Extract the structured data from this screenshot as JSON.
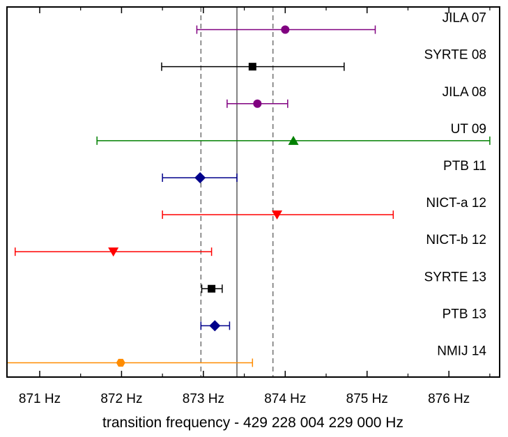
{
  "chart_data": {
    "type": "scatter",
    "xlabel": "transition frequency - 429 228 004 229 000 Hz",
    "xlim": [
      870.6,
      876.62
    ],
    "x_ticks": [
      {
        "value": 871,
        "label": "871 Hz"
      },
      {
        "value": 872,
        "label": "872 Hz"
      },
      {
        "value": 873,
        "label": "873 Hz"
      },
      {
        "value": 874,
        "label": "874 Hz"
      },
      {
        "value": 875,
        "label": "875 Hz"
      },
      {
        "value": 876,
        "label": "876 Hz"
      }
    ],
    "mean_line": 873.41,
    "uncertainty_band": [
      872.97,
      873.85
    ],
    "grid": false,
    "legend": "none",
    "series": [
      {
        "name": "JILA 07",
        "x": 874.0,
        "x_low": 872.92,
        "x_high": 875.1,
        "marker": "circle",
        "color": "#800080"
      },
      {
        "name": "SYRTE 08",
        "x": 873.6,
        "x_low": 872.49,
        "x_high": 874.72,
        "marker": "square",
        "color": "#000000"
      },
      {
        "name": "JILA 08",
        "x": 873.66,
        "x_low": 873.29,
        "x_high": 874.03,
        "marker": "circle",
        "color": "#800080"
      },
      {
        "name": "UT 09",
        "x": 874.1,
        "x_low": 871.7,
        "x_high": 876.5,
        "marker": "triangle-up",
        "color": "#008000"
      },
      {
        "name": "PTB 11",
        "x": 872.96,
        "x_low": 872.5,
        "x_high": 873.41,
        "marker": "diamond",
        "color": "#00008b"
      },
      {
        "name": "NICT-a 12",
        "x": 873.9,
        "x_low": 872.5,
        "x_high": 875.32,
        "marker": "triangle-down",
        "color": "#ff0000"
      },
      {
        "name": "NICT-b 12",
        "x": 871.9,
        "x_low": 870.7,
        "x_high": 873.1,
        "marker": "triangle-down",
        "color": "#ff0000"
      },
      {
        "name": "SYRTE 13",
        "x": 873.1,
        "x_low": 872.98,
        "x_high": 873.23,
        "marker": "square",
        "color": "#000000"
      },
      {
        "name": "PTB 13",
        "x": 873.14,
        "x_low": 872.97,
        "x_high": 873.32,
        "marker": "diamond",
        "color": "#00008b"
      },
      {
        "name": "NMIJ 14",
        "x": 871.99,
        "x_low": 870.6,
        "x_high": 873.6,
        "marker": "hexagon",
        "color": "#ff8c00"
      }
    ],
    "colors": {
      "vline": "#666666",
      "dashed": "#777777",
      "axis": "#000000"
    }
  }
}
